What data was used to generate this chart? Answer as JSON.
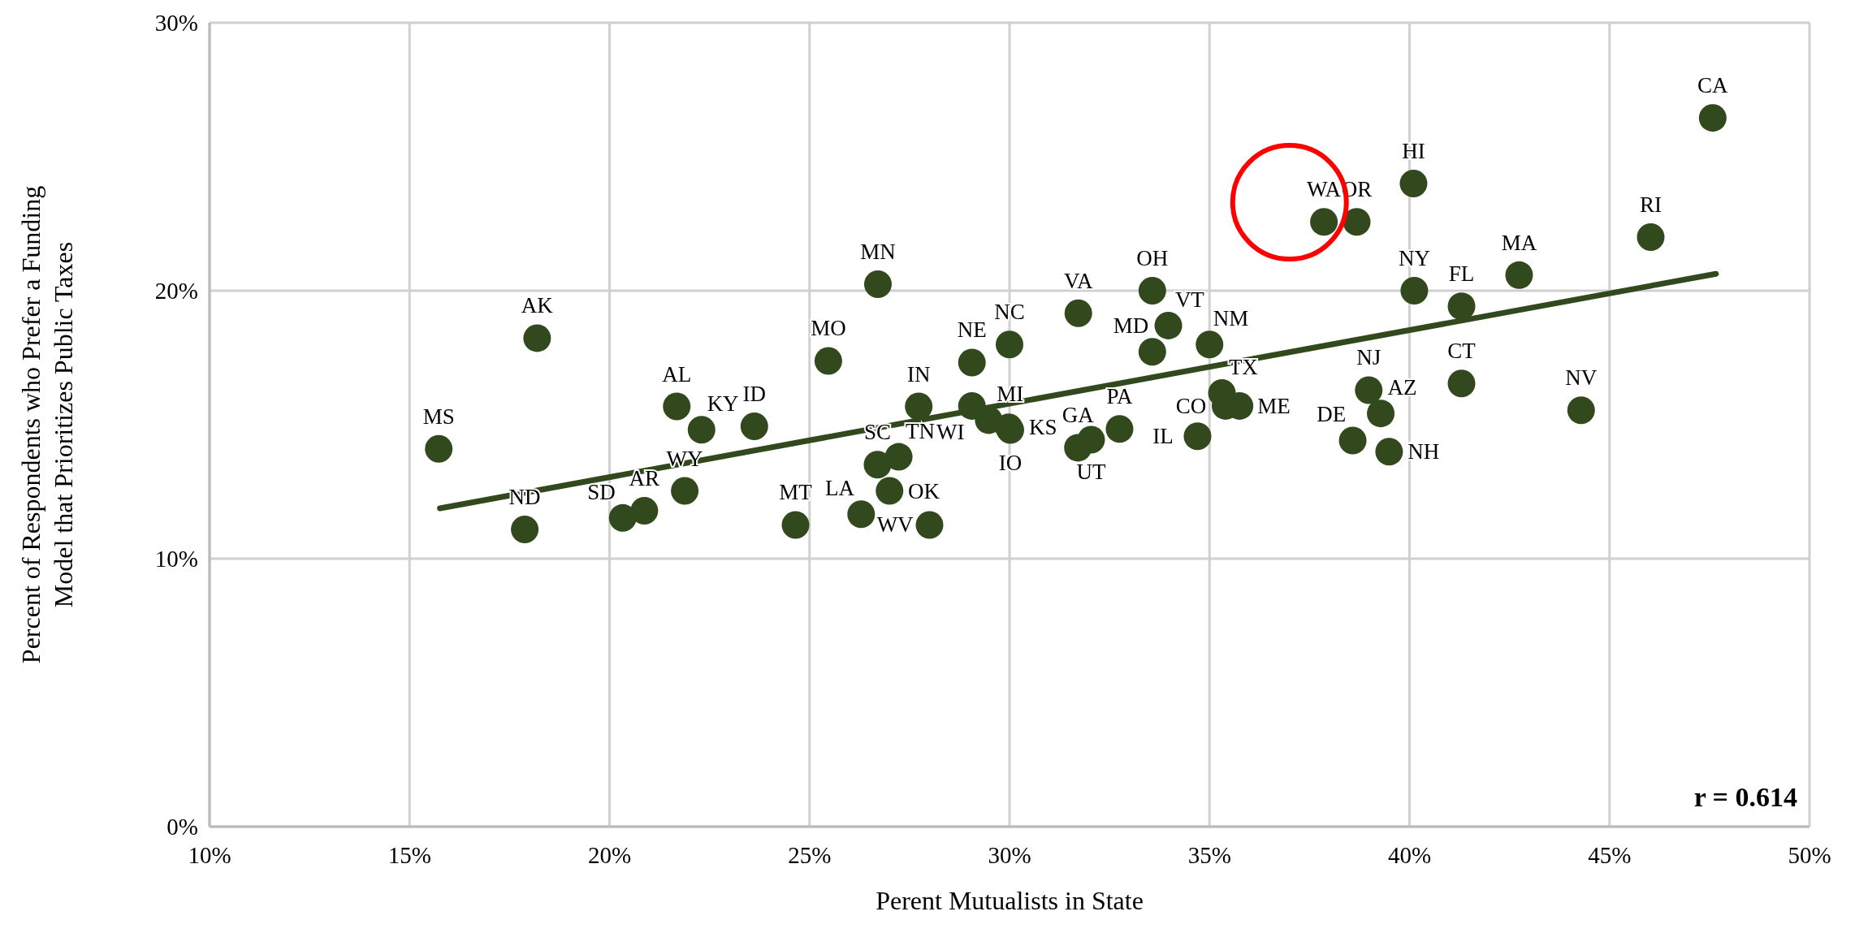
{
  "chart_data": {
    "type": "scatter",
    "xlabel": "Perent Mutualists in State",
    "ylabel": "Percent of Respondents who Prefer a Funding\nModel that Prioritizes Public Taxes",
    "xlim": [
      10,
      50
    ],
    "ylim": [
      0,
      30
    ],
    "xticks": [
      {
        "value": 10,
        "label": "10%"
      },
      {
        "value": 15,
        "label": "15%"
      },
      {
        "value": 20,
        "label": "20%"
      },
      {
        "value": 25,
        "label": "25%"
      },
      {
        "value": 30,
        "label": "30%"
      },
      {
        "value": 35,
        "label": "35%"
      },
      {
        "value": 40,
        "label": "40%"
      },
      {
        "value": 45,
        "label": "45%"
      },
      {
        "value": 50,
        "label": "50%"
      }
    ],
    "yticks": [
      {
        "value": 0,
        "label": "0%"
      },
      {
        "value": 10,
        "label": "10%"
      },
      {
        "value": 20,
        "label": "20%"
      },
      {
        "value": 30,
        "label": "30%"
      }
    ],
    "grid": true,
    "marker": "circle",
    "annotations": [
      "r = 0.614"
    ],
    "series": [
      {
        "color": "#31491d",
        "x": [
          47.58,
          46.03,
          40.1,
          37.86,
          38.68,
          40.12,
          41.3,
          42.74,
          41.3,
          44.29,
          38.98,
          39.28,
          38.58,
          39.49,
          33.57,
          31.72,
          33.97,
          33.57,
          35.0,
          30.0,
          29.06,
          29.06,
          29.48,
          29.98,
          30.02,
          32.75,
          32.04,
          31.71,
          35.4,
          34.7,
          35.31,
          35.75,
          27.73,
          26.71,
          25.47,
          26.7,
          27.23,
          27.0,
          28.0,
          26.29,
          24.65,
          23.62,
          22.3,
          21.68,
          21.88,
          20.87,
          20.33,
          18.19,
          17.88,
          15.73
        ],
        "values": [
          26.45,
          22.0,
          24.0,
          22.57,
          22.57,
          20.0,
          19.42,
          20.58,
          16.54,
          15.54,
          16.29,
          15.42,
          14.41,
          13.99,
          20.0,
          19.16,
          18.7,
          17.72,
          17.99,
          17.99,
          17.32,
          15.7,
          15.17,
          14.9,
          14.8,
          14.84,
          14.44,
          14.14,
          15.7,
          14.57,
          16.18,
          15.7,
          15.68,
          20.24,
          17.38,
          13.51,
          13.8,
          12.53,
          11.26,
          11.66,
          11.26,
          14.94,
          14.81,
          15.68,
          12.53,
          11.79,
          11.52,
          18.23,
          11.09,
          14.1
        ],
        "value_labels": [
          "CA",
          "RI",
          "HI",
          "WA",
          "OR",
          "NY",
          "FL",
          "MA",
          "CT",
          "NV",
          "NJ",
          "AZ",
          "DE",
          "NH",
          "OH",
          "VA",
          "VT",
          "MD",
          "NM",
          "NC",
          "NE",
          "WI",
          "MI",
          "KS",
          "IO",
          "PA",
          "UT",
          "GA",
          "CO",
          "IL",
          "TX",
          "ME",
          "IN",
          "MN",
          "MO",
          "SC",
          "TN",
          "OK",
          "WV",
          "LA",
          "MT",
          "ID",
          "KY",
          "AL",
          "WY",
          "AR",
          "SD",
          "AK",
          "ND",
          "MS"
        ]
      },
      {
        "type": "line",
        "marker": "none",
        "color": "#31491d",
        "x": [
          15.76,
          47.66
        ],
        "values": [
          11.88,
          20.63
        ]
      }
    ]
  }
}
